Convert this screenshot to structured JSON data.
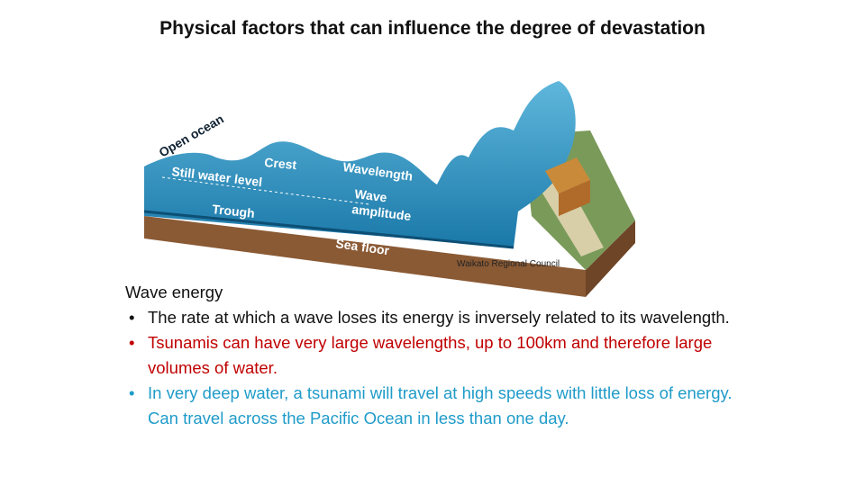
{
  "title": "Physical factors that can influence the degree of devastation",
  "diagram": {
    "labels": {
      "open_ocean": "Open ocean",
      "crest": "Crest",
      "still_water_level": "Still water level",
      "wavelength": "Wavelength",
      "wave_amplitude": [
        "Wave",
        "amplitude"
      ],
      "trough": "Trough",
      "sea_floor": "Sea floor"
    },
    "credit": "Waikato Regional Council"
  },
  "section": {
    "heading": "Wave energy",
    "bullets": [
      "The rate at which a wave loses its energy is inversely related to its wavelength.",
      "Tsunamis can have very large wavelengths, up to 100km and therefore large volumes of water.",
      "In very deep water, a tsunami will travel at high speeds with little loss of energy. Can travel across the Pacific Ocean in less than one day."
    ]
  }
}
